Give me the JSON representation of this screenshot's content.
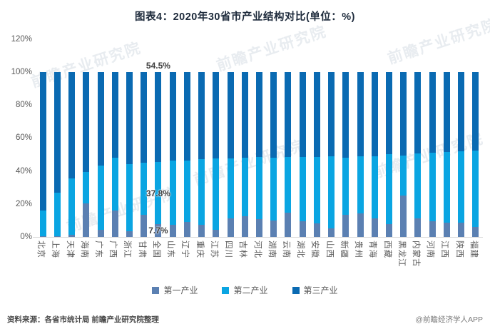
{
  "title": "图表4：2020年30省市产业结构对比(单位：%)",
  "watermark_text": "前瞻产业研究院",
  "colors": {
    "primary": "#5b80b2",
    "secondary": "#0aa5e2",
    "tertiary": "#0a6ab2",
    "axis_text": "#595959",
    "axis_line": "#d9d9d9",
    "title_text": "#1e2b3c",
    "data_label_text": "#3f3f3f"
  },
  "y_axis": {
    "ticks": [
      "120%",
      "100%",
      "80%",
      "60%",
      "40%",
      "20%",
      "0%"
    ],
    "min": 0,
    "max": 120,
    "step": 20
  },
  "legend": [
    {
      "label": "第一产业",
      "color": "#5b80b2"
    },
    {
      "label": "第二产业",
      "color": "#0aa5e2"
    },
    {
      "label": "第三产业",
      "color": "#0a6ab2"
    }
  ],
  "footer": {
    "source": "资料来源：各省市统计局 前瞻产业研究院整理",
    "credit": "@前瞻经济学人APP"
  },
  "chart_data": {
    "type": "bar",
    "stacked": true,
    "unit": "%",
    "title": "图表4：2020年30省市产业结构对比(单位：%)",
    "xlabel": "",
    "ylabel": "",
    "ylim": [
      0,
      120
    ],
    "grid": false,
    "legend_position": "bottom",
    "categories": [
      "北京",
      "上海",
      "天津",
      "海南",
      "广东",
      "广西",
      "浙江",
      "甘肃",
      "全国",
      "山东",
      "辽宁",
      "重庆",
      "江苏",
      "四川",
      "吉林",
      "河北",
      "湖南",
      "云南",
      "湖北",
      "安徽",
      "山西",
      "新疆",
      "贵州",
      "青海",
      "西藏",
      "黑龙江",
      "内蒙古",
      "河南",
      "江西",
      "陕西",
      "福建"
    ],
    "series": [
      {
        "name": "第一产业",
        "color": "#5b80b2",
        "values": [
          0.4,
          0.3,
          1.5,
          20.5,
          4.3,
          16.0,
          3.3,
          13.3,
          7.7,
          7.3,
          9.1,
          7.2,
          4.4,
          11.4,
          12.7,
          10.7,
          10.1,
          14.7,
          9.7,
          8.2,
          5.4,
          13.3,
          14.2,
          11.1,
          8.0,
          25.1,
          11.2,
          9.7,
          8.5,
          8.7,
          6.2
        ]
      },
      {
        "name": "第二产业",
        "color": "#0aa5e2",
        "values": [
          15.8,
          26.6,
          34.1,
          19.1,
          39.2,
          32.1,
          40.9,
          31.6,
          37.8,
          39.1,
          37.4,
          40.0,
          43.1,
          36.2,
          35.2,
          37.6,
          38.1,
          33.8,
          38.7,
          40.5,
          43.4,
          34.8,
          34.9,
          38.0,
          42.3,
          24.4,
          39.6,
          41.6,
          43.2,
          43.4,
          46.3
        ]
      },
      {
        "name": "第三产业",
        "color": "#0a6ab2",
        "values": [
          83.8,
          73.1,
          64.4,
          60.4,
          56.5,
          51.9,
          55.8,
          55.1,
          54.5,
          53.6,
          53.5,
          52.8,
          52.5,
          52.4,
          52.1,
          51.7,
          51.8,
          51.5,
          51.6,
          51.3,
          51.2,
          51.9,
          50.9,
          50.9,
          49.7,
          50.5,
          49.2,
          48.7,
          48.3,
          47.9,
          47.5
        ]
      }
    ],
    "annotations": [
      {
        "category": "全国",
        "labels": {
          "第一产业": "7.7%",
          "第二产业": "37.8%",
          "第三产业": "54.5%"
        }
      }
    ]
  }
}
